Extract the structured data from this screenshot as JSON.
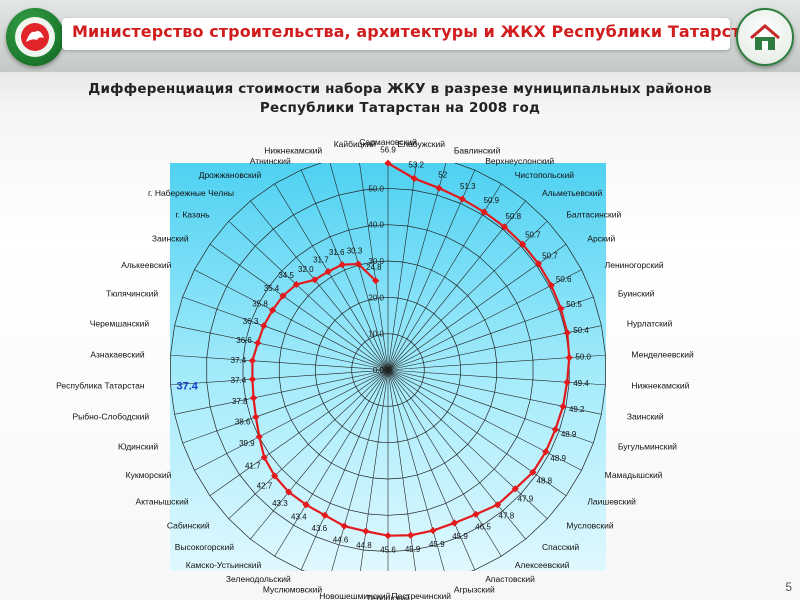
{
  "header": {
    "title": "Министерство строительства, архитектуры и ЖКХ Республики Татарстан"
  },
  "logos": {
    "left": "tatarstan-emblem",
    "right": "ministry-house-emblem"
  },
  "slide": {
    "page_number": "5"
  },
  "colors": {
    "title_red": "#d11d1d",
    "series_red": "#e31a1c",
    "panel_blue": "#4fd1f2",
    "highlight_blue": "#1a3cc8"
  },
  "chart_data": {
    "type": "radar",
    "title_line1": "Дифференциация стоимости набора ЖКУ в разрезе муниципальных районов",
    "title_line2": "Республики Татарстан на 2008 год",
    "rlim": [
      0,
      60
    ],
    "rticks": [
      "0.0",
      "10.0",
      "20.0",
      "30.0",
      "40.0",
      "50.0"
    ],
    "grid": true,
    "highlight": {
      "category": "Республика Татарстан",
      "value": "37.4"
    },
    "categories": [
      "Сармановский",
      "Елабужский",
      "Бавлинский",
      "Верхнеуслонский",
      "Чистопольский",
      "Альметьевский",
      "Балтасинский",
      "Арский",
      "Лениногорский",
      "Буинский",
      "Нурлатский",
      "Менделеевский",
      "Нижнекамский",
      "Заинский",
      "Бугульминский",
      "Мамадышский",
      "Лаишевский",
      "Мусловский",
      "Спасский",
      "Алексеевский",
      "Апастовский",
      "Агрызский",
      "Пестречинский",
      "Тетюшский",
      "Новошешминский",
      "Муслюмовский",
      "Зеленодольский",
      "Камско-Устьинский",
      "Высокогорский",
      "Сабинский",
      "Актанышский",
      "Кукморский",
      "Юдинский",
      "Рыбно-Слободский",
      "Республика Татарстан",
      "Азнакаевский",
      "Черемшанский",
      "Тюлячинский",
      "Алькеевский",
      "Заинский",
      "г. Казань",
      "г. Набережные Челны",
      "Дрожжановский",
      "Атнинский",
      "Нижнекамский",
      "Кайбицкий"
    ],
    "series": [
      {
        "name": "",
        "values": [
          56.9,
          53.2,
          52.0,
          51.3,
          50.9,
          50.8,
          50.7,
          50.7,
          50.6,
          50.5,
          50.4,
          50.0,
          49.4,
          49.2,
          48.9,
          48.9,
          48.8,
          47.9,
          47.8,
          46.5,
          45.9,
          45.9,
          45.9,
          45.6,
          44.8,
          44.6,
          43.6,
          43.4,
          43.3,
          42.7,
          41.7,
          39.9,
          38.6,
          37.8,
          37.4,
          37.4,
          36.6,
          36.3,
          35.8,
          35.4,
          34.5,
          32.0,
          31.7,
          31.6,
          30.3,
          24.8
        ],
        "labels": [
          "56.9",
          "53.2",
          "52",
          "51.3",
          "50.9",
          "50.8",
          "50.7",
          "50.7",
          "50.6",
          "50.5",
          "50.4",
          "50.0",
          "49.4",
          "49.2",
          "48.9",
          "48.9",
          "48.8",
          "47.9",
          "47.8",
          "46.5",
          "45.9",
          "45.9",
          "45.9",
          "45.6",
          "44.8",
          "44.6",
          "43.6",
          "43.4",
          "43.3",
          "42.7",
          "41.7",
          "39.9",
          "38.6",
          "37.8",
          "37.4",
          "37.4",
          "36.6",
          "36.3",
          "35.8",
          "35.4",
          "34.5",
          "32.0",
          "31.7",
          "31.6",
          "30.3",
          "24.8"
        ]
      }
    ]
  }
}
